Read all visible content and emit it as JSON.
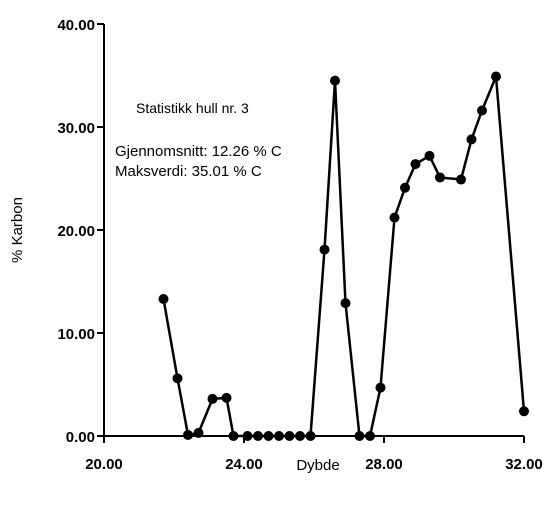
{
  "chart_data": {
    "type": "line",
    "xlabel": "Dybde",
    "ylabel": "% Karbon",
    "xlim": [
      20,
      32
    ],
    "ylim": [
      0,
      40
    ],
    "x_ticks": [
      "20.00",
      "24.00",
      "28.00",
      "32.00"
    ],
    "y_ticks": [
      "0.00",
      "10.00",
      "20.00",
      "30.00",
      "40.00"
    ],
    "grid": false,
    "annotations": {
      "title": "Statistikk hull nr. 3",
      "mean": "Gjennomsnitt:  12.26 % C",
      "max": "Maksverdi:  35.01 % C"
    },
    "series": [
      {
        "x": [
          21.7,
          22.1,
          22.4,
          22.7,
          23.1,
          23.5,
          23.7,
          24.1,
          24.4,
          24.7,
          25.0,
          25.3,
          25.6,
          25.9,
          26.3,
          26.6,
          26.9,
          27.3,
          27.6,
          27.9,
          28.3,
          28.6,
          28.9,
          29.3,
          29.6,
          30.2,
          30.5,
          30.8,
          31.2,
          32.0
        ],
        "y": [
          13.3,
          5.6,
          0.1,
          0.3,
          3.6,
          3.7,
          0.0,
          0.0,
          0.0,
          0.0,
          0.0,
          0.0,
          0.0,
          0.0,
          18.1,
          34.5,
          12.9,
          0.0,
          0.0,
          4.7,
          21.2,
          24.1,
          26.4,
          27.2,
          25.1,
          24.9,
          28.8,
          31.6,
          34.9,
          2.4
        ]
      }
    ]
  }
}
